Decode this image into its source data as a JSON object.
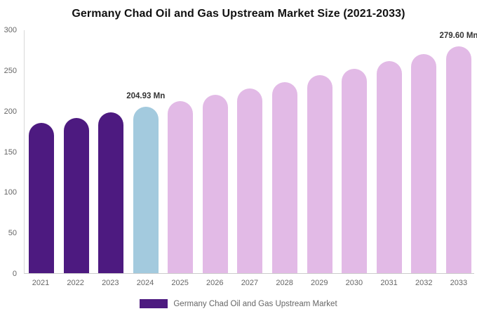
{
  "title": "Germany Chad Oil and Gas Upstream Market Size (2021-2033)",
  "legend": {
    "label": "Germany Chad Oil and Gas Upstream Market",
    "swatch_color": "#4d1a80"
  },
  "chart_data": {
    "type": "bar",
    "title": "Germany Chad Oil and Gas Upstream Market Size (2021-2033)",
    "categories": [
      "2021",
      "2022",
      "2023",
      "2024",
      "2025",
      "2026",
      "2027",
      "2028",
      "2029",
      "2030",
      "2031",
      "2032",
      "2033"
    ],
    "values": [
      184.78,
      191.27,
      197.98,
      204.93,
      212.12,
      219.57,
      227.27,
      235.25,
      243.51,
      252.05,
      260.9,
      270.06,
      279.6
    ],
    "unit": "Mn",
    "bar_roles": [
      "historical",
      "historical",
      "historical",
      "current",
      "forecast",
      "forecast",
      "forecast",
      "forecast",
      "forecast",
      "forecast",
      "forecast",
      "forecast",
      "forecast"
    ],
    "colors": {
      "historical": "#4d1a80",
      "current": "#a3cade",
      "forecast": "#e2bae6"
    },
    "data_labels": [
      {
        "category": "2024",
        "text": "204.93 Mn"
      },
      {
        "category": "2033",
        "text": "279.60 Mn"
      }
    ],
    "y_ticks": [
      0,
      50,
      100,
      150,
      200,
      250,
      300
    ],
    "ylim": [
      0,
      300
    ],
    "xlabel": "",
    "ylabel": "",
    "grid": false,
    "legend_position": "bottom",
    "axis_color": "#cccccc",
    "tick_text_color": "#666666"
  }
}
